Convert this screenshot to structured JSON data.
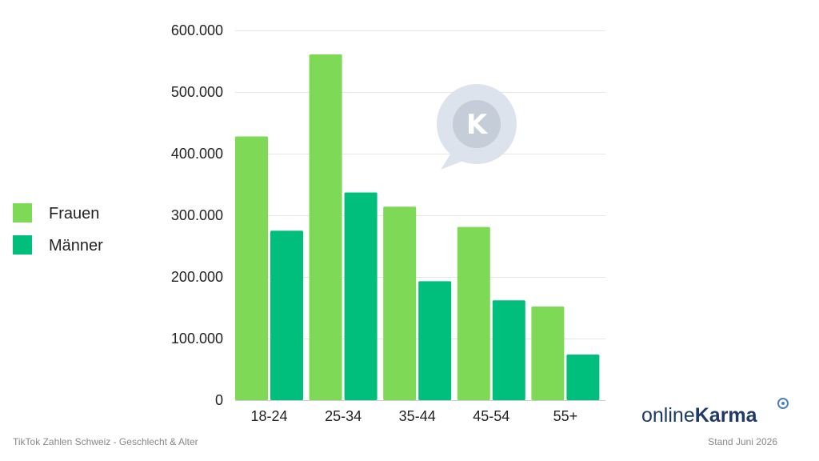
{
  "chart_data": {
    "type": "bar",
    "categories": [
      "18-24",
      "25-34",
      "35-44",
      "45-54",
      "55+"
    ],
    "series": [
      {
        "name": "Frauen",
        "color": "#7ed957",
        "values": [
          428000,
          561000,
          314000,
          281000,
          152000
        ]
      },
      {
        "name": "Männer",
        "color": "#00bf7d",
        "values": [
          275000,
          337000,
          193000,
          162000,
          74000
        ]
      }
    ],
    "ylim": [
      0,
      600000
    ],
    "yticks": [
      0,
      100000,
      200000,
      300000,
      400000,
      500000,
      600000
    ],
    "ytick_labels": [
      "0",
      "100.000",
      "200.000",
      "300.000",
      "400.000",
      "500.000",
      "600.000"
    ],
    "grid": true,
    "legend_position": "left"
  },
  "footer": {
    "caption": "TikTok Zahlen Schweiz - Geschlecht & Alter",
    "date": "Stand Juni 2026"
  },
  "brand": {
    "light": "online",
    "bold": "Karma",
    "color": "#1f3a66",
    "accent": "#4a7fc1"
  },
  "watermark": {
    "letter": "K",
    "color": "#c5cdd8"
  }
}
